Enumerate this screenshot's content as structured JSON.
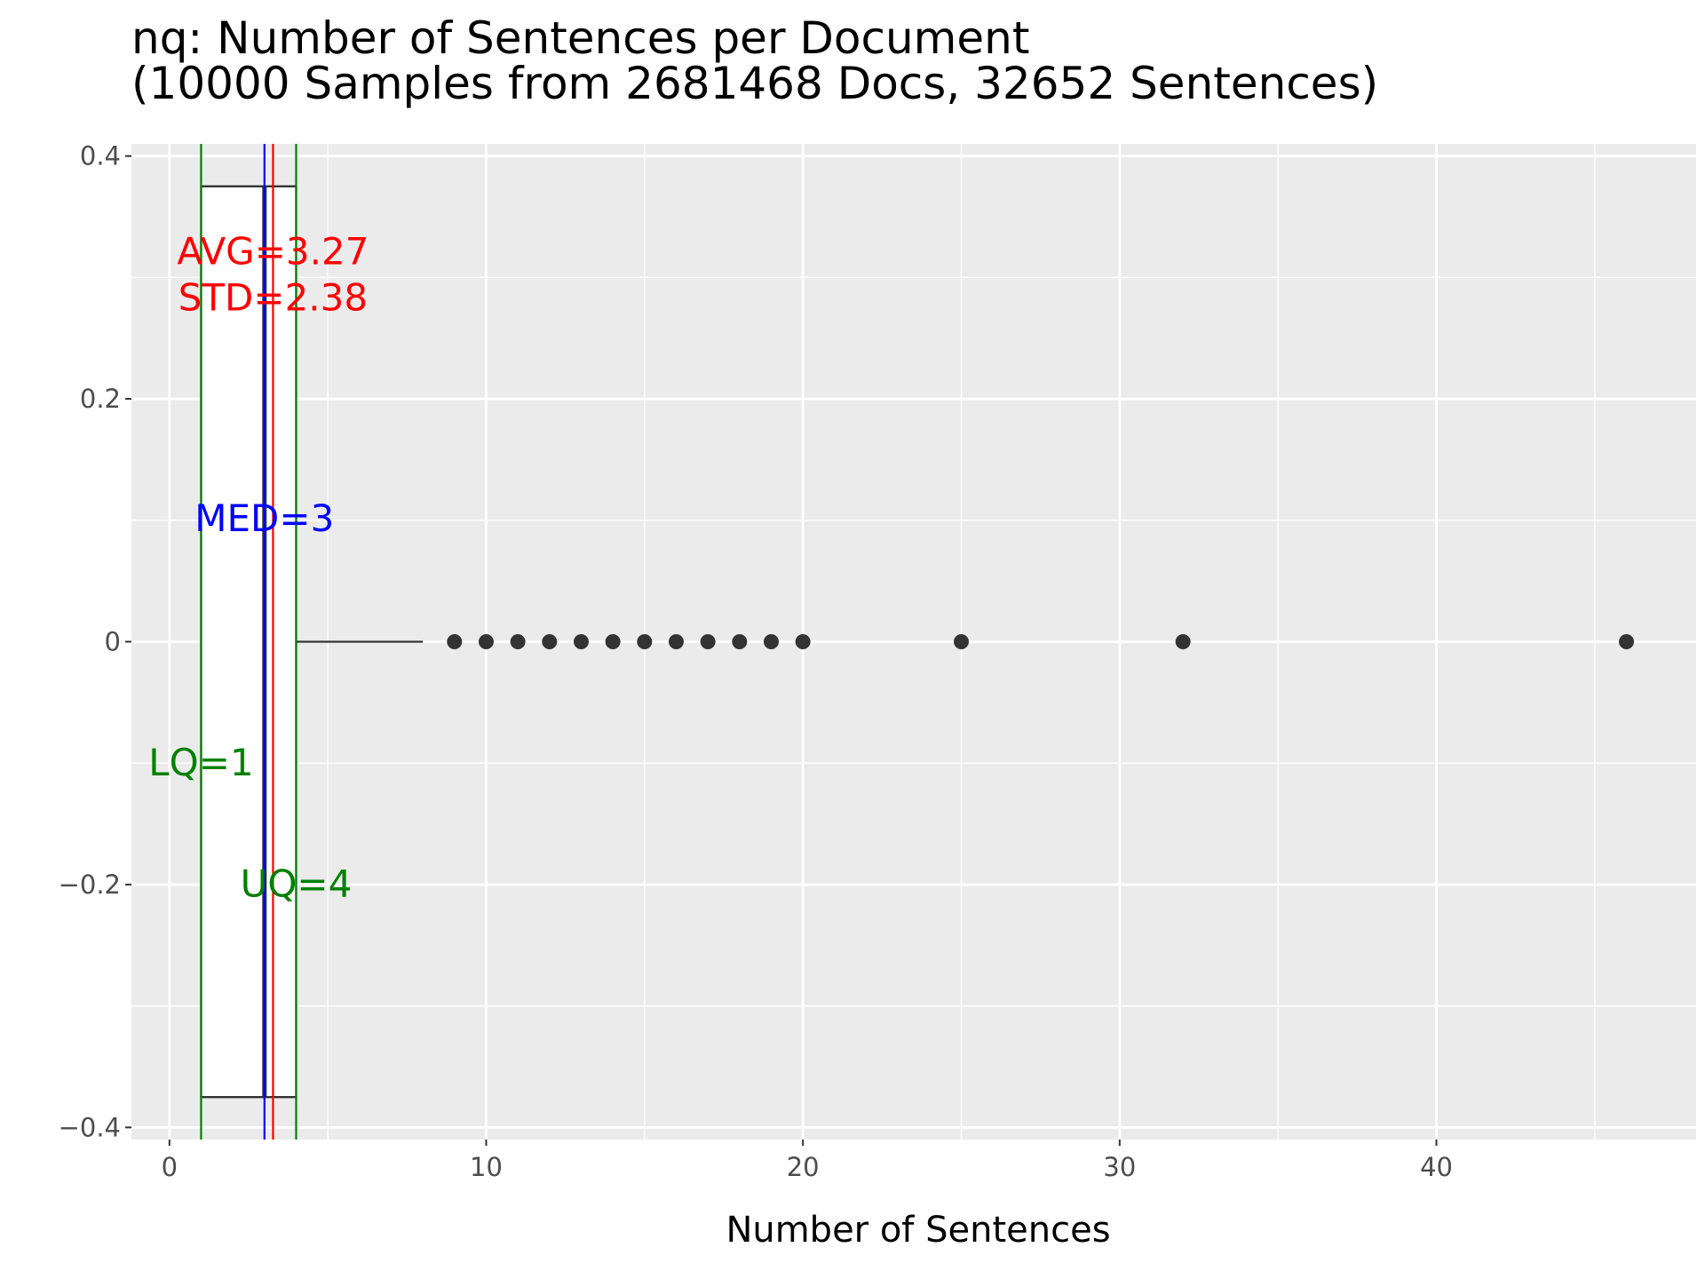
{
  "chart_data": {
    "type": "boxplot",
    "title": "nq: Number of Sentences per Document",
    "subtitle": "(10000 Samples from 2681468 Docs, 32652 Sentences)",
    "xlabel": "Number of Sentences",
    "ylabel": "",
    "xlim": [
      -1.2,
      48.2
    ],
    "ylim": [
      -0.41,
      0.41
    ],
    "x_ticks": [
      0,
      10,
      20,
      30,
      40
    ],
    "x_tick_labels": [
      "0",
      "10",
      "20",
      "30",
      "40"
    ],
    "y_ticks": [
      0.4,
      0.2,
      0,
      -0.2,
      -0.4
    ],
    "y_tick_labels": [
      "0.4",
      "0.2",
      "0",
      "−0.2",
      "−0.4"
    ],
    "grid": true,
    "box": {
      "lower_quartile": 1,
      "median": 3,
      "upper_quartile": 4,
      "whisker_low": 1,
      "whisker_high": 8,
      "y_center": 0,
      "half_height": 0.375
    },
    "outliers": [
      9,
      10,
      11,
      12,
      13,
      14,
      15,
      16,
      17,
      18,
      19,
      20,
      25,
      32,
      46
    ],
    "reference_lines": [
      {
        "name": "LQ",
        "x": 1,
        "color": "#008000"
      },
      {
        "name": "UQ",
        "x": 4,
        "color": "#008000"
      },
      {
        "name": "MED",
        "x": 3,
        "color": "#0000ff"
      },
      {
        "name": "AVG",
        "x": 3.27,
        "color": "#ff0000"
      }
    ],
    "annotations": [
      {
        "id": "avg",
        "text": "AVG=3.27",
        "x": 3.27,
        "y": 0.322,
        "color": "#ff0000"
      },
      {
        "id": "std",
        "text": "STD=2.38",
        "x": 3.27,
        "y": 0.284,
        "color": "#ff0000"
      },
      {
        "id": "med",
        "text": "MED=3",
        "x": 3,
        "y": 0.102,
        "color": "#0000ff"
      },
      {
        "id": "lq",
        "text": "LQ=1",
        "x": 1,
        "y": -0.099,
        "color": "#008000"
      },
      {
        "id": "uq",
        "text": "UQ=4",
        "x": 4,
        "y": -0.199,
        "color": "#008000"
      }
    ],
    "colors": {
      "panel_background": "#ebebeb",
      "grid": "#ffffff",
      "box_outline": "#333333",
      "points": "#333333"
    }
  }
}
